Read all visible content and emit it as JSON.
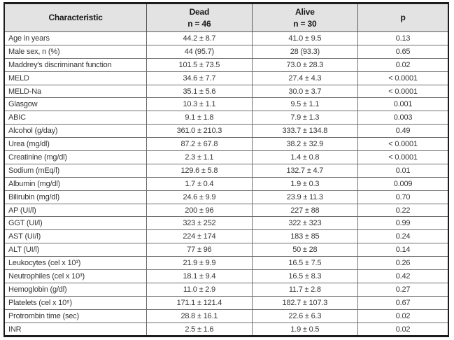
{
  "table": {
    "colors": {
      "header_bg": "#e3e3e3",
      "outer_border": "#1c1c1c",
      "inner_border": "#6e6e6e",
      "text": "#363636"
    },
    "header": {
      "characteristic": "Characteristic",
      "dead": {
        "line1": "Dead",
        "line2": "n = 46"
      },
      "alive": {
        "line1": "Alive",
        "line2": "n = 30"
      },
      "p": "p"
    },
    "rows": [
      {
        "characteristic": "Age in years",
        "dead": "44.2 ± 8.7",
        "alive": "41.0 ± 9.5",
        "p": "0.13"
      },
      {
        "characteristic": "Male sex, n (%)",
        "dead": "44 (95.7)",
        "alive": "28 (93.3)",
        "p": "0.65"
      },
      {
        "characteristic": "Maddrey's discriminant function",
        "dead": "101.5 ± 73.5",
        "alive": "73.0 ± 28.3",
        "p": "0.02"
      },
      {
        "characteristic": "MELD",
        "dead": "34.6 ± 7.7",
        "alive": "27.4 ± 4.3",
        "p": "< 0.0001"
      },
      {
        "characteristic": "MELD-Na",
        "dead": "35.1 ± 5.6",
        "alive": "30.0 ± 3.7",
        "p": "< 0.0001"
      },
      {
        "characteristic": "Glasgow",
        "dead": "10.3 ± 1.1",
        "alive": "9.5 ± 1.1",
        "p": "0.001"
      },
      {
        "characteristic": "ABIC",
        "dead": "9.1 ± 1.8",
        "alive": "7.9 ± 1.3",
        "p": "0.003"
      },
      {
        "characteristic": "Alcohol (g/day)",
        "dead": "361.0 ± 210.3",
        "alive": "333.7 ± 134.8",
        "p": "0.49"
      },
      {
        "characteristic": "Urea (mg/dl)",
        "dead": "87.2 ± 67.8",
        "alive": "38.2 ± 32.9",
        "p": "< 0.0001"
      },
      {
        "characteristic": "Creatinine (mg/dl)",
        "dead": "2.3 ± 1.1",
        "alive": "1.4 ± 0.8",
        "p": "< 0.0001"
      },
      {
        "characteristic": "Sodium (mEq/l)",
        "dead": "129.6 ± 5.8",
        "alive": "132.7 ± 4.7",
        "p": "0.01"
      },
      {
        "characteristic": "Albumin (mg/dl)",
        "dead": "1.7 ± 0.4",
        "alive": "1.9 ± 0.3",
        "p": "0.009"
      },
      {
        "characteristic": "Bilirubin (mg/dl)",
        "dead": "24.6 ± 9.9",
        "alive": "23.9 ± 11.3",
        "p": "0.70"
      },
      {
        "characteristic": "AP (UI/l)",
        "dead": "200 ± 96",
        "alive": "227 ± 88",
        "p": "0.22"
      },
      {
        "characteristic": "GGT (UI/l)",
        "dead": "323 ± 252",
        "alive": "322 ± 323",
        "p": "0.99"
      },
      {
        "characteristic": "AST (UI/l)",
        "dead": "224 ± 174",
        "alive": "183 ± 85",
        "p": "0.24"
      },
      {
        "characteristic": "ALT (UI/l)",
        "dead": "77 ± 96",
        "alive": "50 ± 28",
        "p": "0.14"
      },
      {
        "characteristic": "Leukocytes (cel x 10³)",
        "dead": "21.9 ± 9.9",
        "alive": "16.5 ± 7.5",
        "p": "0.26"
      },
      {
        "characteristic": "Neutrophiles (cel x 10³)",
        "dead": "18.1 ± 9.4",
        "alive": "16.5 ± 8.3",
        "p": "0.42"
      },
      {
        "characteristic": "Hemoglobin (g/dl)",
        "dead": "11.0 ± 2.9",
        "alive": "11.7 ± 2.8",
        "p": "0.27"
      },
      {
        "characteristic": "Platelets (cel x 10⁹)",
        "dead": "171.1 ± 121.4",
        "alive": "182.7 ± 107.3",
        "p": "0.67"
      },
      {
        "characteristic": "Protrombin time (sec)",
        "dead": "28.8 ± 16.1",
        "alive": "22.6 ± 6.3",
        "p": "0.02"
      },
      {
        "characteristic": "INR",
        "dead": "2.5 ± 1.6",
        "alive": "1.9 ± 0.5",
        "p": "0.02"
      }
    ]
  }
}
